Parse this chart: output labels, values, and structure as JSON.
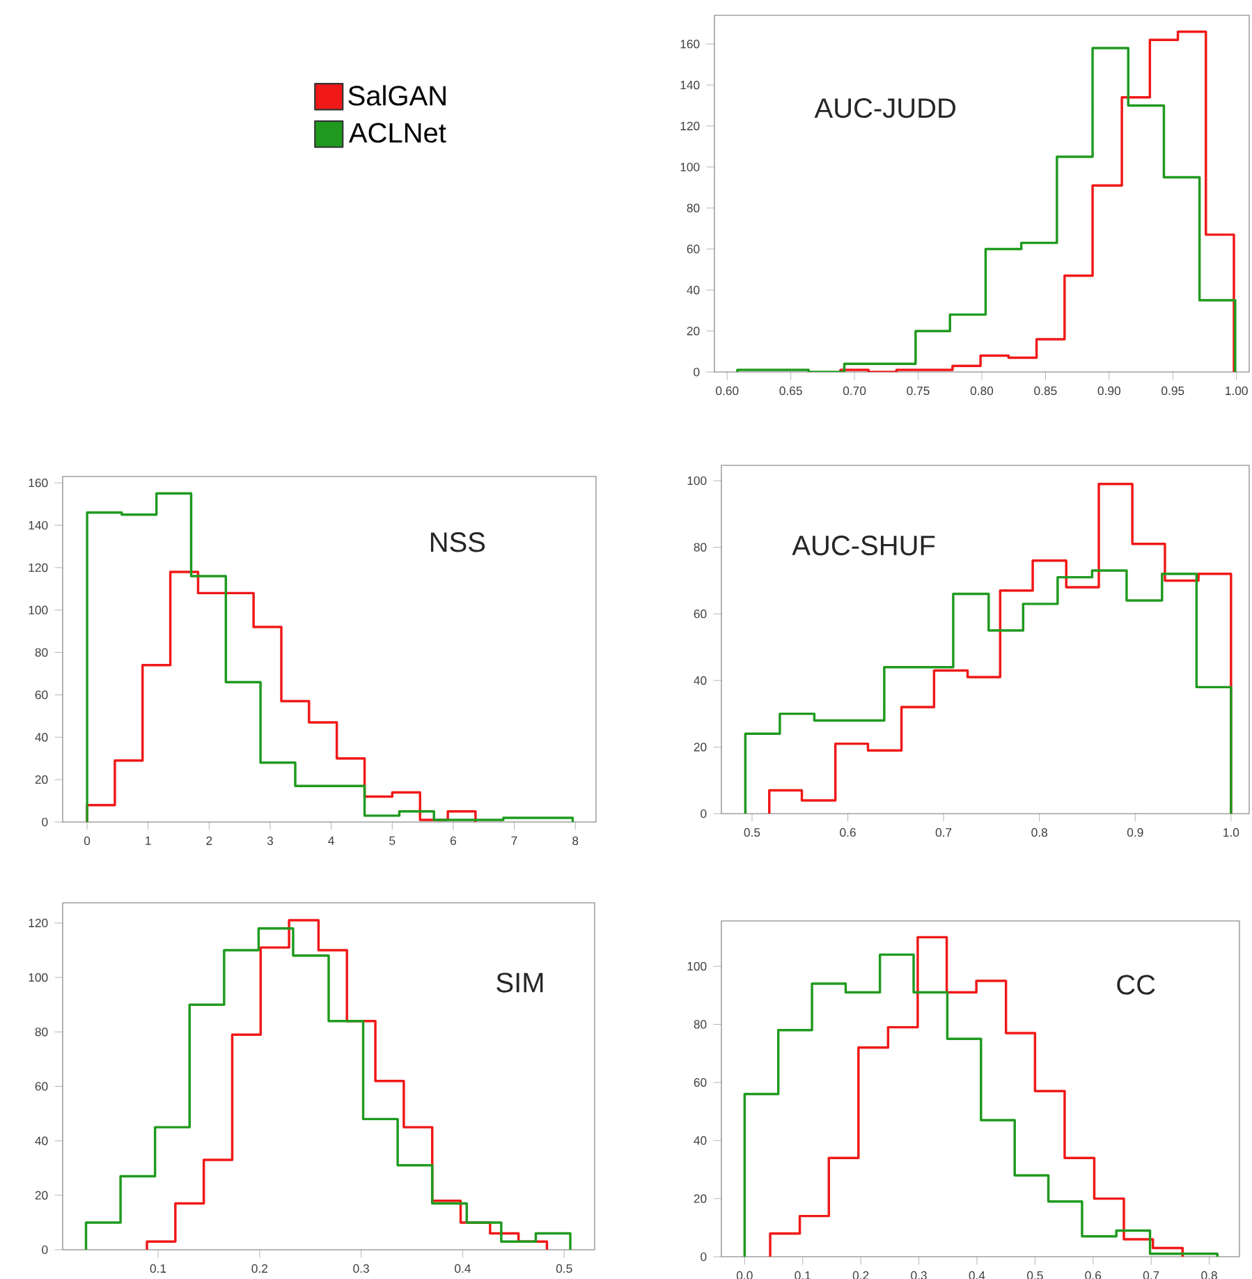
{
  "chart_data": [
    {
      "type": "step",
      "title": "AUC-JUDD",
      "legend": "left",
      "series": [
        {
          "name": "SalGAN",
          "color": "#f01818",
          "x": [
            0.689,
            0.689,
            0.711,
            0.733,
            0.755,
            0.777,
            0.799,
            0.821,
            0.843,
            0.865,
            0.887,
            0.91,
            0.932,
            0.954,
            0.976,
            0.998
          ],
          "values": [
            0,
            1,
            0,
            1,
            1,
            3,
            8,
            7,
            16,
            47,
            91,
            134,
            162,
            166,
            67,
            0
          ]
        },
        {
          "name": "ACLNet",
          "color": "#1f9a1f",
          "x": [
            0.608,
            0.608,
            0.636,
            0.664,
            0.692,
            0.72,
            0.748,
            0.775,
            0.803,
            0.831,
            0.859,
            0.887,
            0.915,
            0.943,
            0.971,
            0.999
          ],
          "values": [
            0,
            1,
            1,
            0,
            4,
            4,
            20,
            28,
            60,
            63,
            105,
            158,
            130,
            95,
            35,
            0
          ]
        }
      ],
      "xlim": [
        0.59,
        1.01
      ],
      "ylim": [
        0,
        174
      ],
      "xticks": [
        {
          "value": 0.6,
          "label": "0.60"
        },
        {
          "value": 0.65,
          "label": "0.65"
        },
        {
          "value": 0.7,
          "label": "0.70"
        },
        {
          "value": 0.75,
          "label": "0.75"
        },
        {
          "value": 0.8,
          "label": "0.80"
        },
        {
          "value": 0.85,
          "label": "0.85"
        },
        {
          "value": 0.9,
          "label": "0.90"
        },
        {
          "value": 0.95,
          "label": "0.95"
        },
        {
          "value": 1.0,
          "label": "1.00"
        }
      ],
      "yticks": [
        0,
        20,
        40,
        60,
        80,
        100,
        120,
        140,
        160
      ]
    },
    {
      "type": "step",
      "title": "NSS",
      "series": [
        {
          "color": "#f01818",
          "x": [
            0,
            0,
            0.455,
            0.909,
            1.364,
            1.819,
            2.273,
            2.728,
            3.183,
            3.637,
            4.092,
            4.547,
            5.001,
            5.456,
            5.911,
            6.365
          ],
          "values": [
            0,
            8,
            29,
            74,
            118,
            108,
            108,
            92,
            57,
            47,
            30,
            12,
            14,
            1,
            5,
            0
          ]
        },
        {
          "color": "#1f9a1f",
          "x": [
            0,
            0,
            0.568,
            1.137,
            1.705,
            2.274,
            2.842,
            3.411,
            3.979,
            4.547,
            5.116,
            5.684,
            6.253,
            6.821,
            7.389,
            7.958
          ],
          "values": [
            0,
            146,
            145,
            155,
            116,
            66,
            28,
            17,
            17,
            3,
            5,
            1,
            1,
            2,
            2,
            0
          ]
        }
      ],
      "xlim": [
        -0.4,
        8.34
      ],
      "ylim": [
        0,
        163
      ],
      "xticks": [
        0,
        1,
        2,
        3,
        4,
        5,
        6,
        7,
        8
      ],
      "yticks": [
        0,
        20,
        40,
        60,
        80,
        100,
        120,
        140,
        160
      ]
    },
    {
      "type": "step",
      "title": "AUC-SHUF",
      "series": [
        {
          "color": "#f01818",
          "x": [
            0.518,
            0.518,
            0.552,
            0.587,
            0.621,
            0.656,
            0.69,
            0.725,
            0.759,
            0.793,
            0.828,
            0.862,
            0.897,
            0.931,
            0.966,
            1.0
          ],
          "values": [
            0,
            7,
            4,
            21,
            19,
            32,
            43,
            41,
            67,
            76,
            68,
            99,
            81,
            70,
            72,
            0
          ]
        },
        {
          "color": "#1f9a1f",
          "x": [
            0.493,
            0.493,
            0.529,
            0.565,
            0.602,
            0.638,
            0.674,
            0.71,
            0.747,
            0.783,
            0.819,
            0.855,
            0.891,
            0.928,
            0.964,
            1.0
          ],
          "values": [
            0,
            24,
            30,
            28,
            28,
            44,
            44,
            66,
            55,
            63,
            71,
            73,
            64,
            72,
            38,
            0
          ]
        }
      ],
      "xlim": [
        0.468,
        1.019
      ],
      "ylim": [
        0,
        104.6
      ],
      "xticks": [
        0.5,
        0.6,
        0.7,
        0.8,
        0.9,
        {
          "value": 1.0,
          "label": "1.0"
        }
      ],
      "yticks": [
        0,
        20,
        40,
        60,
        80,
        100
      ]
    },
    {
      "type": "step",
      "title": "SIM",
      "series": [
        {
          "color": "#f01818",
          "x": [
            0.089,
            0.089,
            0.117,
            0.145,
            0.173,
            0.201,
            0.229,
            0.258,
            0.286,
            0.314,
            0.342,
            0.37,
            0.398,
            0.427,
            0.455,
            0.483
          ],
          "values": [
            0,
            3,
            17,
            33,
            79,
            111,
            121,
            110,
            84,
            62,
            45,
            18,
            10,
            6,
            3,
            0
          ]
        },
        {
          "color": "#1f9a1f",
          "x": [
            0.029,
            0.029,
            0.063,
            0.097,
            0.131,
            0.165,
            0.199,
            0.233,
            0.268,
            0.302,
            0.336,
            0.37,
            0.404,
            0.438,
            0.472,
            0.506
          ],
          "values": [
            0,
            10,
            27,
            45,
            90,
            110,
            118,
            108,
            84,
            48,
            31,
            17,
            10,
            3,
            6,
            0
          ]
        }
      ],
      "xlim": [
        0.006,
        0.53
      ],
      "ylim": [
        0,
        127.4
      ],
      "xticks": [
        0.1,
        0.2,
        0.3,
        0.4,
        0.5
      ],
      "yticks": [
        0,
        20,
        40,
        60,
        80,
        100,
        120
      ]
    },
    {
      "type": "step",
      "title": "CC",
      "series": [
        {
          "color": "#f01818",
          "x": [
            0.044,
            0.044,
            0.095,
            0.145,
            0.196,
            0.247,
            0.298,
            0.348,
            0.399,
            0.45,
            0.5,
            0.551,
            0.602,
            0.653,
            0.703,
            0.754
          ],
          "values": [
            0,
            8,
            14,
            34,
            72,
            79,
            110,
            91,
            95,
            77,
            57,
            34,
            20,
            6,
            3,
            0
          ]
        },
        {
          "color": "#1f9a1f",
          "x": [
            0,
            0,
            0.058,
            0.116,
            0.174,
            0.233,
            0.291,
            0.349,
            0.407,
            0.465,
            0.523,
            0.581,
            0.64,
            0.698,
            0.756,
            0.814
          ],
          "values": [
            0,
            56,
            78,
            94,
            91,
            104,
            91,
            75,
            47,
            28,
            19,
            7,
            9,
            1,
            1,
            0
          ]
        }
      ],
      "xlim": [
        -0.04,
        0.852
      ],
      "ylim": [
        0,
        115.6
      ],
      "xticks": [
        {
          "value": 0,
          "label": "0.0"
        },
        0.1,
        0.2,
        0.3,
        0.4,
        0.5,
        0.6,
        0.7,
        0.8
      ],
      "yticks": [
        0,
        20,
        40,
        60,
        80,
        100
      ]
    }
  ]
}
